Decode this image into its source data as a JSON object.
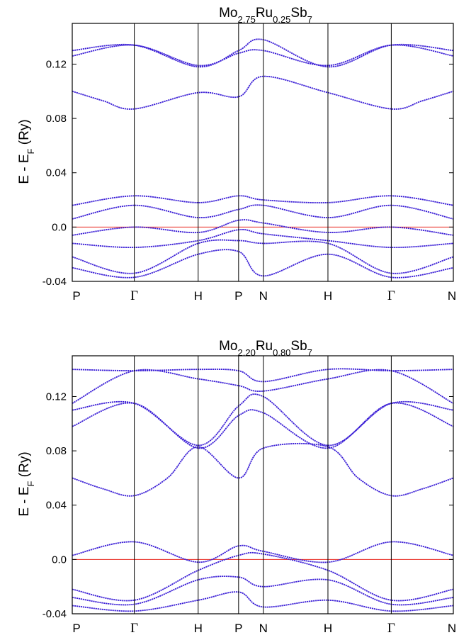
{
  "chart_data": [
    {
      "type": "line",
      "title": {
        "base1": "Mo",
        "sub1": "2.75",
        "base2": "Ru",
        "sub2": "0.25",
        "base3": "Sb",
        "sub3": "7"
      },
      "ylabel": {
        "base": "E - E",
        "sub": "F",
        "suffix": " (Ry)"
      },
      "ylim": [
        -0.04,
        0.15
      ],
      "yticks": [
        "-0.04",
        "0.0",
        "0.04",
        "0.08",
        "0.12"
      ],
      "ytick_values": [
        -0.04,
        0.0,
        0.04,
        0.08,
        0.12
      ],
      "kpoints": [
        "P",
        "Γ",
        "H",
        "P",
        "N",
        "H",
        "Γ",
        "N"
      ],
      "kpos": [
        0,
        0.241,
        0.489,
        0.646,
        0.742,
        0.993,
        1.239,
        1.48
      ],
      "fermi_level": 0.0,
      "series_color": "#3b1fd6",
      "fermi_color": "#e8221a",
      "series": [
        {
          "x": [
            0,
            0.241,
            0.489,
            0.646,
            0.742,
            0.993,
            1.239,
            1.48
          ],
          "y": [
            0.13,
            0.134,
            0.118,
            0.13,
            0.138,
            0.118,
            0.134,
            0.13
          ]
        },
        {
          "x": [
            0,
            0.241,
            0.489,
            0.646,
            0.742,
            0.993,
            1.239,
            1.48
          ],
          "y": [
            0.126,
            0.134,
            0.119,
            0.128,
            0.13,
            0.119,
            0.134,
            0.126
          ]
        },
        {
          "x": [
            0,
            0.12,
            0.241,
            0.489,
            0.646,
            0.742,
            0.993,
            1.239,
            1.36,
            1.48
          ],
          "y": [
            0.1,
            0.093,
            0.087,
            0.099,
            0.096,
            0.111,
            0.099,
            0.087,
            0.093,
            0.1
          ]
        },
        {
          "x": [
            0,
            0.241,
            0.489,
            0.646,
            0.742,
            0.993,
            1.239,
            1.48
          ],
          "y": [
            0.016,
            0.023,
            0.018,
            0.023,
            0.02,
            0.018,
            0.023,
            0.016
          ]
        },
        {
          "x": [
            0,
            0.241,
            0.489,
            0.646,
            0.742,
            0.993,
            1.239,
            1.48
          ],
          "y": [
            0.006,
            0.016,
            0.007,
            0.013,
            0.016,
            0.007,
            0.016,
            0.006
          ]
        },
        {
          "x": [
            0,
            0.241,
            0.489,
            0.646,
            0.742,
            0.993,
            1.239,
            1.48
          ],
          "y": [
            -0.006,
            0.0,
            -0.004,
            0.005,
            0.003,
            -0.004,
            0.0,
            -0.006
          ]
        },
        {
          "x": [
            0,
            0.241,
            0.489,
            0.646,
            0.742,
            0.993,
            1.239,
            1.48
          ],
          "y": [
            -0.012,
            -0.015,
            -0.01,
            -0.002,
            -0.005,
            -0.01,
            -0.015,
            -0.012
          ]
        },
        {
          "x": [
            0,
            0.241,
            0.489,
            0.646,
            0.742,
            0.993,
            1.239,
            1.48
          ],
          "y": [
            -0.022,
            -0.034,
            -0.012,
            -0.01,
            -0.012,
            -0.012,
            -0.034,
            -0.022
          ]
        },
        {
          "x": [
            0,
            0.241,
            0.489,
            0.646,
            0.742,
            0.993,
            1.239,
            1.48
          ],
          "y": [
            -0.03,
            -0.037,
            -0.02,
            -0.018,
            -0.036,
            -0.02,
            -0.037,
            -0.03
          ]
        }
      ]
    },
    {
      "type": "line",
      "title": {
        "base1": "Mo",
        "sub1": "2.20",
        "base2": "Ru",
        "sub2": "0.80",
        "base3": "Sb",
        "sub3": "7"
      },
      "ylabel": {
        "base": "E - E",
        "sub": "F",
        "suffix": " (Ry)"
      },
      "ylim": [
        -0.04,
        0.15
      ],
      "yticks": [
        "-0.04",
        "0.0",
        "0.04",
        "0.08",
        "0.12"
      ],
      "ytick_values": [
        -0.04,
        0.0,
        0.04,
        0.08,
        0.12
      ],
      "kpoints": [
        "P",
        "Γ",
        "H",
        "P",
        "N",
        "H",
        "Γ",
        "N"
      ],
      "kpos": [
        0,
        0.241,
        0.489,
        0.646,
        0.742,
        0.993,
        1.239,
        1.48
      ],
      "fermi_level": 0.0,
      "series_color": "#3b1fd6",
      "fermi_color": "#e8221a",
      "series": [
        {
          "x": [
            0,
            0.241,
            0.489,
            0.646,
            0.742,
            0.993,
            1.239,
            1.48
          ],
          "y": [
            0.14,
            0.139,
            0.14,
            0.139,
            0.131,
            0.14,
            0.139,
            0.14
          ]
        },
        {
          "x": [
            0,
            0.241,
            0.489,
            0.646,
            0.742,
            0.993,
            1.239,
            1.48
          ],
          "y": [
            0.115,
            0.139,
            0.133,
            0.128,
            0.124,
            0.133,
            0.139,
            0.115
          ]
        },
        {
          "x": [
            0,
            0.241,
            0.489,
            0.646,
            0.742,
            0.993,
            1.239,
            1.48
          ],
          "y": [
            0.11,
            0.115,
            0.084,
            0.113,
            0.12,
            0.084,
            0.115,
            0.11
          ]
        },
        {
          "x": [
            0,
            0.241,
            0.489,
            0.646,
            0.742,
            0.993,
            1.239,
            1.48
          ],
          "y": [
            0.098,
            0.115,
            0.082,
            0.106,
            0.108,
            0.082,
            0.115,
            0.098
          ]
        },
        {
          "x": [
            0,
            0.12,
            0.241,
            0.37,
            0.489,
            0.646,
            0.742,
            0.993,
            1.11,
            1.239,
            1.36,
            1.48
          ],
          "y": [
            0.06,
            0.052,
            0.047,
            0.06,
            0.083,
            0.06,
            0.082,
            0.083,
            0.06,
            0.047,
            0.052,
            0.06
          ]
        },
        {
          "x": [
            0,
            0.241,
            0.489,
            0.646,
            0.742,
            0.993,
            1.239,
            1.48
          ],
          "y": [
            0.003,
            0.013,
            -0.002,
            0.01,
            0.006,
            -0.002,
            0.013,
            0.003
          ]
        },
        {
          "x": [
            0,
            0.241,
            0.489,
            0.646,
            0.742,
            0.993,
            1.239,
            1.48
          ],
          "y": [
            -0.022,
            -0.03,
            -0.008,
            0.003,
            0.004,
            -0.008,
            -0.03,
            -0.022
          ]
        },
        {
          "x": [
            0,
            0.241,
            0.489,
            0.646,
            0.742,
            0.993,
            1.239,
            1.48
          ],
          "y": [
            -0.028,
            -0.033,
            -0.015,
            -0.013,
            -0.02,
            -0.015,
            -0.033,
            -0.028
          ]
        },
        {
          "x": [
            0,
            0.241,
            0.489,
            0.646,
            0.742,
            0.993,
            1.239,
            1.48
          ],
          "y": [
            -0.034,
            -0.038,
            -0.03,
            -0.024,
            -0.035,
            -0.03,
            -0.038,
            -0.034
          ]
        }
      ]
    }
  ]
}
